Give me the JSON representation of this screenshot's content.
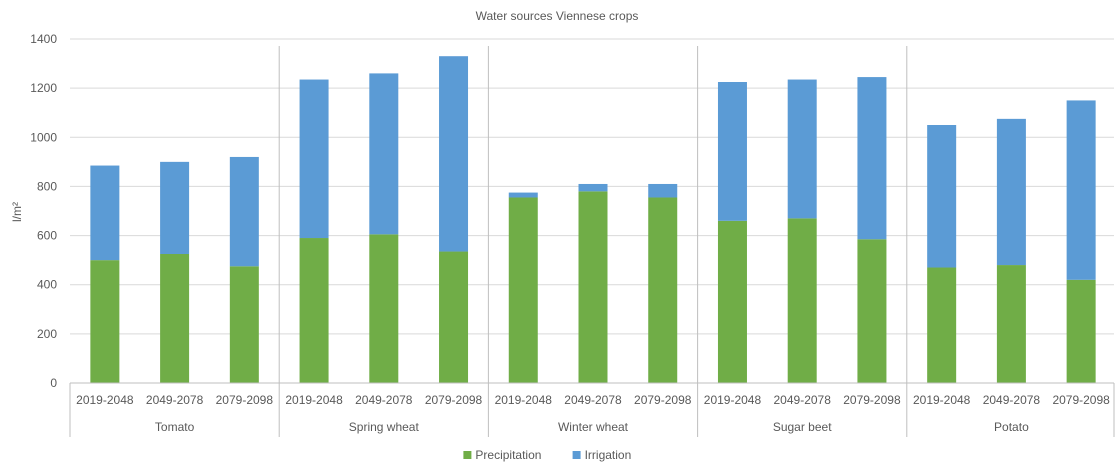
{
  "chart_data": {
    "type": "bar",
    "stacked": true,
    "title": "Water sources Viennese crops",
    "ylabel": "l/m²",
    "xlabel": "",
    "ylim": [
      0,
      1400
    ],
    "yticks": [
      0,
      200,
      400,
      600,
      800,
      1000,
      1200,
      1400
    ],
    "grid": true,
    "legend_position": "bottom",
    "groups": [
      {
        "name": "Tomato",
        "periods": [
          "2019-2048",
          "2049-2078",
          "2079-2098"
        ]
      },
      {
        "name": "Spring wheat",
        "periods": [
          "2019-2048",
          "2049-2078",
          "2079-2098"
        ]
      },
      {
        "name": "Winter wheat",
        "periods": [
          "2019-2048",
          "2049-2078",
          "2079-2098"
        ]
      },
      {
        "name": "Sugar beet",
        "periods": [
          "2019-2048",
          "2049-2078",
          "2079-2098"
        ]
      },
      {
        "name": "Potato",
        "periods": [
          "2019-2048",
          "2049-2078",
          "2079-2098"
        ]
      }
    ],
    "series": [
      {
        "name": "Precipitation",
        "color": "#70ad47",
        "values": [
          500,
          525,
          475,
          590,
          605,
          535,
          755,
          780,
          755,
          660,
          670,
          585,
          470,
          480,
          420
        ]
      },
      {
        "name": "Irrigation",
        "color": "#5b9bd5",
        "values": [
          385,
          375,
          445,
          645,
          655,
          795,
          20,
          30,
          55,
          565,
          565,
          660,
          580,
          595,
          730
        ]
      }
    ]
  }
}
